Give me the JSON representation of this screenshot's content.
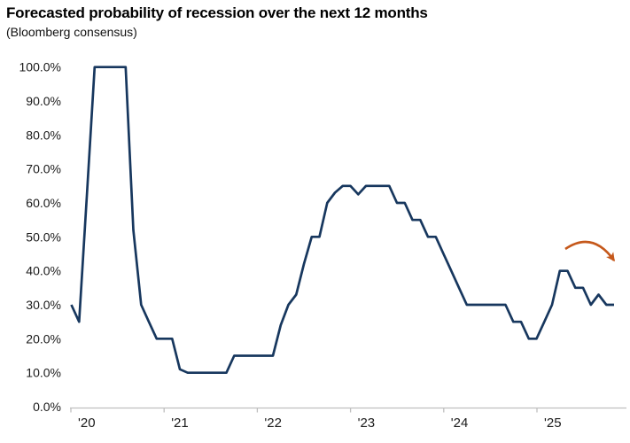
{
  "header": {
    "title": "Forecasted probability of recession over the next 12 months",
    "subtitle": "(Bloomberg consensus)"
  },
  "chart_data": {
    "type": "line",
    "title": "Forecasted probability of recession over the next 12 months",
    "subtitle": "(Bloomberg consensus)",
    "xlabel": "",
    "ylabel": "",
    "unit": "percent",
    "ylim": [
      0,
      100
    ],
    "grid": false,
    "legend": "none",
    "line_color": "#17375E",
    "axis_color": "#BFBFBF",
    "label_color": "#1a1a1a",
    "y_tick_labels": [
      "0.0%",
      "10.0%",
      "20.0%",
      "30.0%",
      "40.0%",
      "50.0%",
      "60.0%",
      "70.0%",
      "80.0%",
      "90.0%",
      "100.0%"
    ],
    "x_tick_labels": [
      "'20",
      "'21",
      "'22",
      "'23",
      "'24",
      "'25"
    ],
    "series": [
      {
        "name": "Forecasted recession probability (Bloomberg consensus)",
        "frequency": "monthly",
        "start": "2020-01",
        "end": "2025-11",
        "values_by_year": [
          {
            "year": 2020,
            "values": [
              30,
              25,
              62,
              100,
              100,
              100,
              100,
              100,
              52,
              30,
              25,
              20
            ]
          },
          {
            "year": 2021,
            "values": [
              20,
              20,
              11,
              10,
              10,
              10,
              10,
              10,
              10,
              15,
              15,
              15
            ]
          },
          {
            "year": 2022,
            "values": [
              15,
              15,
              15,
              24,
              30,
              33,
              42,
              50,
              50,
              60,
              63,
              65
            ]
          },
          {
            "year": 2023,
            "values": [
              65,
              62.5,
              65,
              65,
              65,
              65,
              60,
              60,
              55,
              55,
              50,
              50
            ]
          },
          {
            "year": 2024,
            "values": [
              45,
              40,
              35,
              30,
              30,
              30,
              30,
              30,
              30,
              25,
              25,
              20
            ]
          },
          {
            "year": 2025,
            "values": [
              20,
              25,
              30,
              40,
              40,
              35,
              35,
              30,
              33,
              30,
              30
            ]
          }
        ]
      }
    ],
    "annotations": [
      {
        "type": "curved-arrow",
        "color": "#C5581B",
        "meaning": "anticipated decline in recession probability"
      }
    ]
  }
}
